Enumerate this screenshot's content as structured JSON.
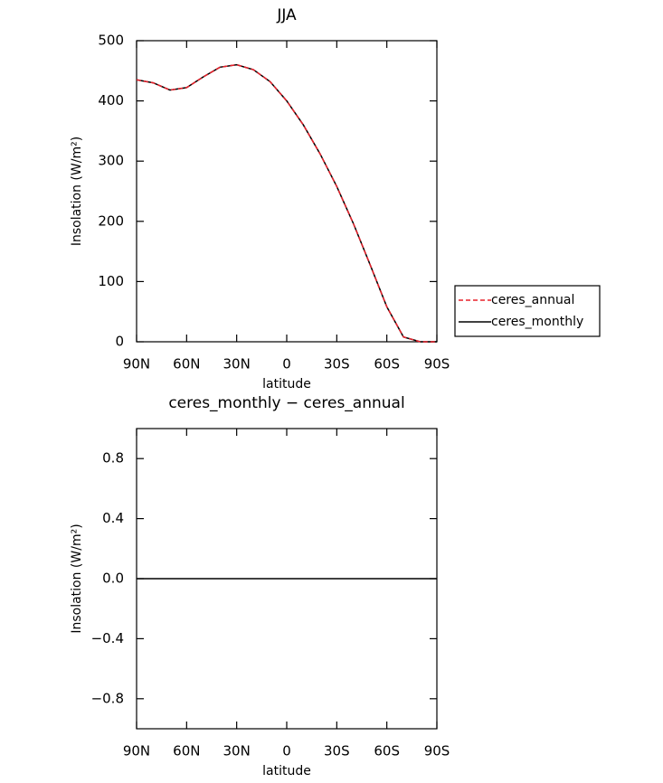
{
  "chart_data": [
    {
      "type": "line",
      "title": "JJA",
      "xlabel": "latitude",
      "ylabel": "Insolation (W/m²)",
      "x": [
        90,
        80,
        70,
        60,
        50,
        40,
        30,
        20,
        10,
        0,
        -10,
        -20,
        -30,
        -40,
        -50,
        -60,
        -70,
        -80,
        -90
      ],
      "xlim": [
        90,
        -90
      ],
      "xticks": [
        {
          "value": 90,
          "label": "90N"
        },
        {
          "value": 60,
          "label": "60N"
        },
        {
          "value": 30,
          "label": "30N"
        },
        0,
        {
          "value": -30,
          "label": "30S"
        },
        {
          "value": -60,
          "label": "60S"
        },
        {
          "value": -90,
          "label": "90S"
        }
      ],
      "ylim": [
        0,
        500
      ],
      "yticks": [
        0,
        100,
        200,
        300,
        400,
        500
      ],
      "legend": "right",
      "series": [
        {
          "name": "ceres_annual",
          "color": "#e8202a",
          "style": "dashed",
          "values": [
            435,
            430,
            418,
            422,
            440,
            456,
            460,
            452,
            432,
            400,
            360,
            312,
            258,
            196,
            128,
            58,
            8,
            0,
            0
          ]
        },
        {
          "name": "ceres_monthly",
          "color": "#000000",
          "style": "solid",
          "values": [
            435,
            430,
            418,
            422,
            440,
            456,
            460,
            452,
            432,
            400,
            360,
            312,
            258,
            196,
            128,
            58,
            8,
            0,
            0
          ]
        }
      ]
    },
    {
      "type": "line",
      "title": "ceres_monthly − ceres_annual",
      "xlabel": "latitude",
      "ylabel": "Insolation (W/m²)",
      "x": [
        90,
        80,
        70,
        60,
        50,
        40,
        30,
        20,
        10,
        0,
        -10,
        -20,
        -30,
        -40,
        -50,
        -60,
        -70,
        -80,
        -90
      ],
      "xlim": [
        90,
        -90
      ],
      "xticks": [
        {
          "value": 90,
          "label": "90N"
        },
        {
          "value": 60,
          "label": "60N"
        },
        {
          "value": 30,
          "label": "30N"
        },
        0,
        {
          "value": -30,
          "label": "30S"
        },
        {
          "value": -60,
          "label": "60S"
        },
        {
          "value": -90,
          "label": "90S"
        }
      ],
      "ylim": [
        -1,
        1
      ],
      "yticks": [
        {
          "value": -0.8,
          "label": "−0.8"
        },
        {
          "value": -0.4,
          "label": "−0.4"
        },
        {
          "value": 0,
          "label": "0.0"
        },
        0.4,
        0.8
      ],
      "color": "#000000",
      "values": [
        0,
        0,
        0,
        0,
        0,
        0,
        0,
        0,
        0,
        0,
        0,
        0,
        0,
        0,
        0,
        0,
        0,
        0,
        0
      ]
    }
  ]
}
